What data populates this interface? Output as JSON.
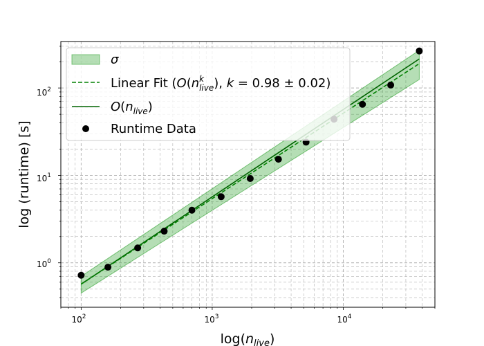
{
  "chart_data": {
    "type": "scatter",
    "xlabel": "log(n_live)",
    "xlabel_parts": {
      "pre": "log(",
      "var": "n",
      "sub": "live",
      "post": ")"
    },
    "ylabel": "log (runtime) [s]",
    "xscale": "log",
    "yscale": "log",
    "xlim": [
      70,
      50000
    ],
    "ylim": [
      0.31,
      340
    ],
    "grid": "major and minor, dashed gray",
    "legend_position": "top-left",
    "x_tick_labels": [
      {
        "value": 100,
        "base": "10",
        "exp": "2"
      },
      {
        "value": 1000,
        "base": "10",
        "exp": "3"
      },
      {
        "value": 10000,
        "base": "10",
        "exp": "4"
      }
    ],
    "y_tick_labels": [
      {
        "value": 1,
        "base": "10",
        "exp": "0"
      },
      {
        "value": 10,
        "base": "10",
        "exp": "1"
      },
      {
        "value": 100,
        "base": "10",
        "exp": "2"
      }
    ],
    "runtime_data": {
      "name": "Runtime Data",
      "color": "#000000",
      "x": [
        100,
        160,
        270,
        430,
        700,
        1170,
        1950,
        3200,
        5200,
        8500,
        14000,
        23000,
        38000
      ],
      "y": [
        0.72,
        0.89,
        1.48,
        2.3,
        4.0,
        5.7,
        9.2,
        15.3,
        24.0,
        44.0,
        65.0,
        108.0,
        265.0
      ]
    },
    "linear_fit": {
      "name": "Linear Fit (O(n_live^k), k = 0.98 ± 0.02)",
      "color": "#008000",
      "x": [
        100,
        38000
      ],
      "y": [
        0.57,
        190.0
      ],
      "k": "0.98 ± 0.02"
    },
    "o_n_live": {
      "name": "O(n_live)",
      "color": "#006400",
      "x": [
        100,
        38000
      ],
      "y": [
        0.57,
        215.0
      ]
    },
    "sigma_band": {
      "name": "σ",
      "color": "#2ca02c",
      "x": [
        100,
        38000
      ],
      "lower": [
        0.45,
        125.0
      ],
      "upper": [
        0.7,
        270.0
      ]
    }
  },
  "legend": {
    "sigma": "σ",
    "fit_prefix": "Linear Fit (",
    "fit_O": "O",
    "fit_paren_open": "(",
    "fit_n": "n",
    "fit_sup": "k",
    "fit_sub": "live",
    "fit_middle": "), ",
    "fit_k": "k",
    "fit_value": " = 0.98 ± 0.02)",
    "o_O": "O",
    "o_open": "(",
    "o_n": "n",
    "o_sub": "live",
    "o_close": ")",
    "runtime": "Runtime Data"
  }
}
